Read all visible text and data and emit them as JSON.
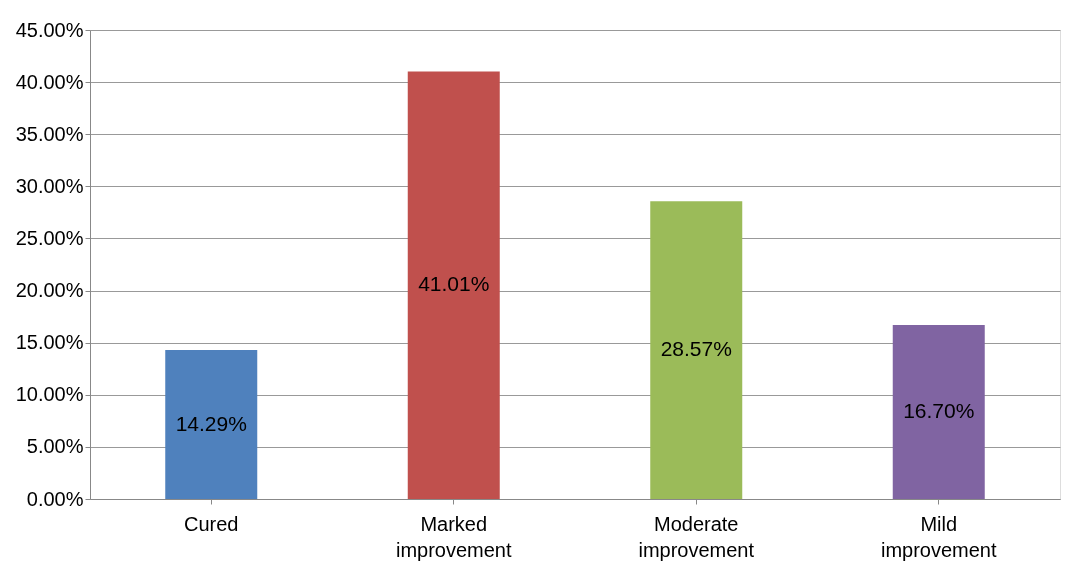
{
  "chart_data": {
    "type": "bar",
    "categories": [
      "Cured",
      "Marked improvement",
      "Moderate improvement",
      "Mild improvement"
    ],
    "values": [
      14.29,
      41.01,
      28.57,
      16.7
    ],
    "colors": [
      "#4f81bd",
      "#c0504d",
      "#9bbb59",
      "#8064a2"
    ],
    "value_labels": [
      "14.29%",
      "41.01%",
      "28.57%",
      "16.70%"
    ],
    "ylim": [
      0,
      45
    ],
    "yticks": [
      {
        "value": 0,
        "label": "0.00%"
      },
      {
        "value": 5,
        "label": "5.00%"
      },
      {
        "value": 10,
        "label": "10.00%"
      },
      {
        "value": 15,
        "label": "15.00%"
      },
      {
        "value": 20,
        "label": "20.00%"
      },
      {
        "value": 25,
        "label": "25.00%"
      },
      {
        "value": 30,
        "label": "30.00%"
      },
      {
        "value": 35,
        "label": "35.00%"
      },
      {
        "value": 40,
        "label": "40.00%"
      },
      {
        "value": 45,
        "label": "45.00%"
      }
    ],
    "grid": "y",
    "legend": false
  }
}
